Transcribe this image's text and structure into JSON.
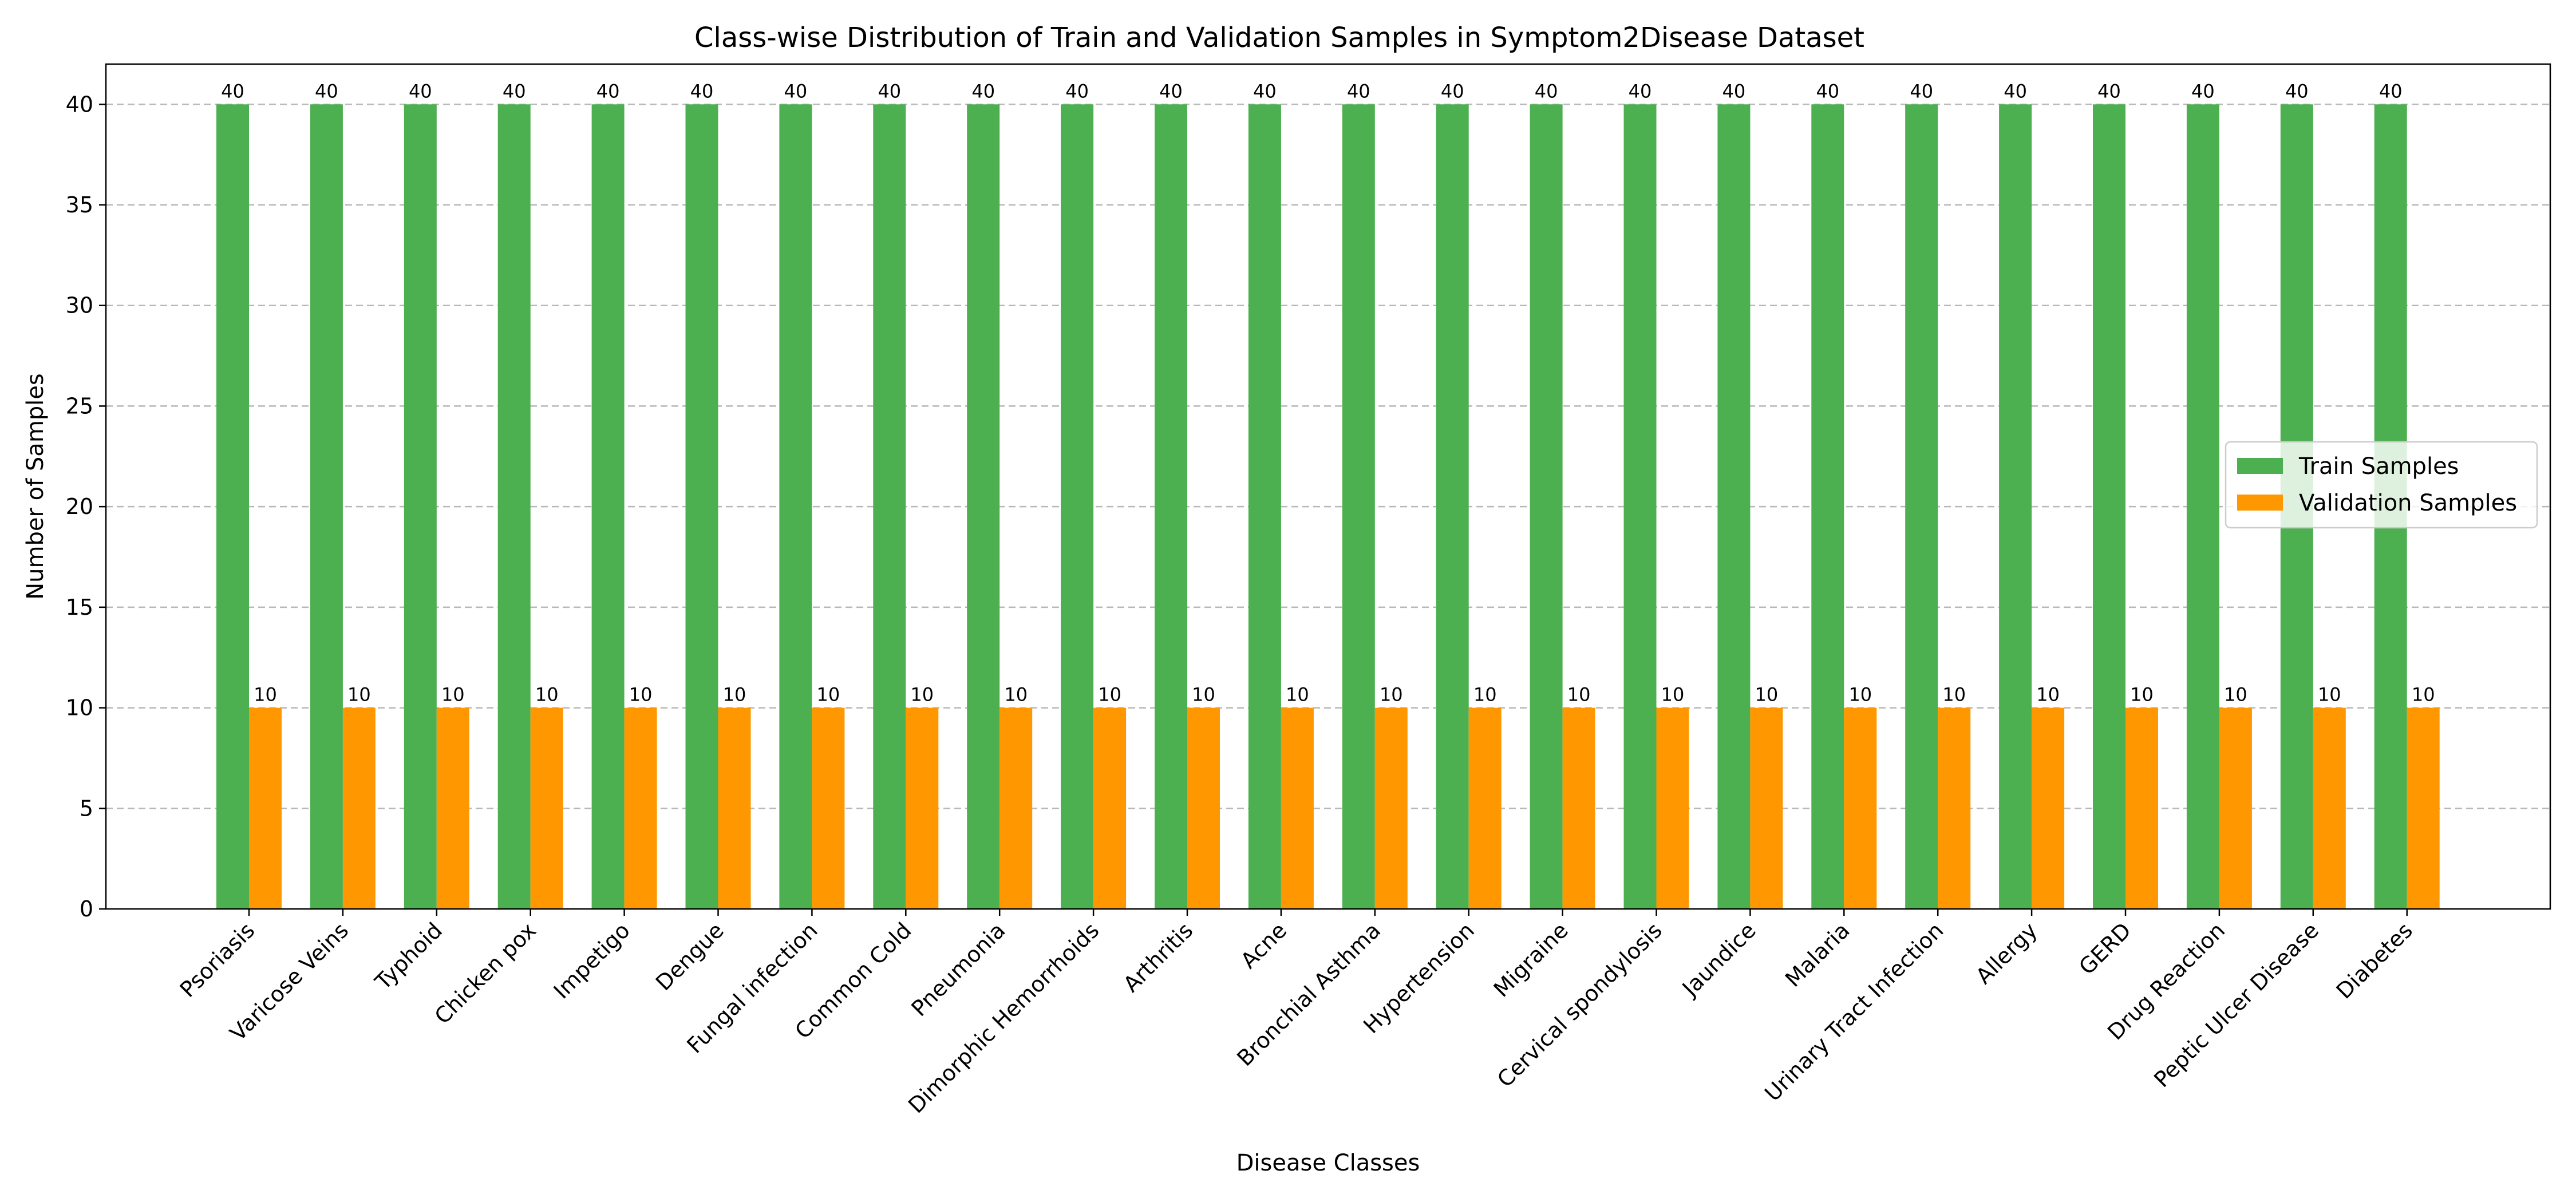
{
  "chart_data": {
    "type": "bar",
    "title": "Class-wise Distribution of Train and Validation Samples in Symptom2Disease Dataset",
    "xlabel": "Disease Classes",
    "ylabel": "Number of Samples",
    "ylim": [
      0,
      42
    ],
    "yticks": [
      0,
      5,
      10,
      15,
      20,
      25,
      30,
      35,
      40
    ],
    "grid": "y-dashed",
    "legend_position": "right",
    "categories": [
      "Psoriasis",
      "Varicose Veins",
      "Typhoid",
      "Chicken pox",
      "Impetigo",
      "Dengue",
      "Fungal infection",
      "Common Cold",
      "Pneumonia",
      "Dimorphic Hemorrhoids",
      "Arthritis",
      "Acne",
      "Bronchial Asthma",
      "Hypertension",
      "Migraine",
      "Cervical spondylosis",
      "Jaundice",
      "Malaria",
      "Urinary Tract Infection",
      "Allergy",
      "GERD",
      "Drug Reaction",
      "Peptic Ulcer Disease",
      "Diabetes"
    ],
    "series": [
      {
        "name": "Train Samples",
        "color": "#4caf50",
        "values": [
          40,
          40,
          40,
          40,
          40,
          40,
          40,
          40,
          40,
          40,
          40,
          40,
          40,
          40,
          40,
          40,
          40,
          40,
          40,
          40,
          40,
          40,
          40,
          40
        ]
      },
      {
        "name": "Validation Samples",
        "color": "#ff9800",
        "values": [
          10,
          10,
          10,
          10,
          10,
          10,
          10,
          10,
          10,
          10,
          10,
          10,
          10,
          10,
          10,
          10,
          10,
          10,
          10,
          10,
          10,
          10,
          10,
          10
        ]
      }
    ]
  }
}
